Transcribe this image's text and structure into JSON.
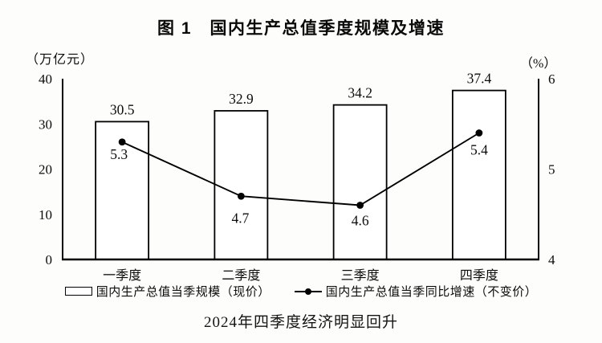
{
  "page": {
    "title": "图 1　国内生产总值季度规模及增速",
    "caption": "2024年四季度经济明显回升"
  },
  "chart_data": {
    "type": "bar",
    "title": "图 1　国内生产总值季度规模及增速",
    "caption": "2024年四季度经济明显回升",
    "categories": [
      "一季度",
      "二季度",
      "三季度",
      "四季度"
    ],
    "series": [
      {
        "name": "国内生产总值当季规模（现价）",
        "type": "bar",
        "axis": "left",
        "values": [
          30.5,
          32.9,
          34.2,
          37.4
        ]
      },
      {
        "name": "国内生产总值当季同比增速（不变价）",
        "type": "line",
        "axis": "right",
        "values": [
          5.3,
          4.7,
          4.6,
          5.4
        ]
      }
    ],
    "left_axis": {
      "unit": "（万亿元）",
      "ticks": [
        0,
        10,
        20,
        30,
        40
      ],
      "range": [
        0,
        40
      ]
    },
    "right_axis": {
      "unit": "（%）",
      "ticks": [
        4,
        5,
        6
      ],
      "range": [
        4,
        6
      ]
    },
    "grid": false,
    "legend_position": "bottom",
    "colors": {
      "bar_fill": "#ffffff",
      "stroke": "#000000",
      "text": "#0c0c0c",
      "background": "#fdfdfb"
    }
  }
}
